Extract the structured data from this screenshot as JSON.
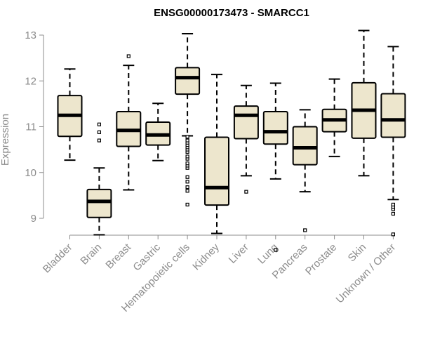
{
  "chart_data": {
    "type": "boxplot",
    "title": "ENSG00000173473 - SMARCC1",
    "xlabel": "",
    "ylabel": "Expression",
    "ylim": [
      8.2,
      13.2
    ],
    "yticks": [
      9,
      10,
      11,
      12,
      13
    ],
    "box_fill": "#ede6cd",
    "categories": [
      "Bladder",
      "Brain",
      "Breast",
      "Gastric",
      "Hematopoietic cells",
      "Kidney",
      "Liver",
      "Lung",
      "Pancreas",
      "Prostate",
      "Skin",
      "Unknown / Other"
    ],
    "tick_labels": [
      "Bladder",
      "Brain",
      "Breast",
      "Gastric",
      "Hematopoietic cells",
      "Kidney",
      "Liver",
      "Lung",
      "Pancreas",
      "Prostate",
      "Skin",
      "Unknown / Other"
    ],
    "boxes": [
      {
        "name": "Bladder",
        "whisker_low": 10.27,
        "q1": 10.79,
        "median": 11.25,
        "q3": 11.68,
        "whisker_high": 12.26,
        "outliers": []
      },
      {
        "name": "Brain",
        "whisker_low": 8.64,
        "q1": 9.02,
        "median": 9.37,
        "q3": 9.63,
        "whisker_high": 10.1,
        "outliers": [
          10.7,
          10.88,
          11.05
        ]
      },
      {
        "name": "Breast",
        "whisker_low": 9.62,
        "q1": 10.57,
        "median": 10.92,
        "q3": 11.33,
        "whisker_high": 12.34,
        "outliers": [
          12.54
        ]
      },
      {
        "name": "Gastric",
        "whisker_low": 10.26,
        "q1": 10.6,
        "median": 10.82,
        "q3": 11.1,
        "whisker_high": 11.51,
        "outliers": []
      },
      {
        "name": "Hematopoietic cells",
        "whisker_low": 10.8,
        "q1": 11.71,
        "median": 12.07,
        "q3": 12.29,
        "whisker_high": 13.03,
        "outliers": [
          9.3,
          9.6,
          9.68,
          9.8,
          9.9,
          10.1,
          10.15,
          10.2,
          10.3,
          10.35,
          10.45,
          10.5,
          10.55,
          10.6,
          10.65,
          10.7,
          10.78
        ]
      },
      {
        "name": "Kidney",
        "whisker_low": 8.67,
        "q1": 9.29,
        "median": 9.67,
        "q3": 10.77,
        "whisker_high": 12.14,
        "outliers": []
      },
      {
        "name": "Liver",
        "whisker_low": 9.93,
        "q1": 10.74,
        "median": 11.25,
        "q3": 11.45,
        "whisker_high": 11.9,
        "outliers": [
          9.58
        ]
      },
      {
        "name": "Lung",
        "whisker_low": 9.86,
        "q1": 10.62,
        "median": 10.89,
        "q3": 11.33,
        "whisker_high": 11.95,
        "outliers": [
          8.31
        ]
      },
      {
        "name": "Pancreas",
        "whisker_low": 9.58,
        "q1": 10.17,
        "median": 10.54,
        "q3": 11.0,
        "whisker_high": 11.37,
        "outliers": [
          8.74
        ]
      },
      {
        "name": "Prostate",
        "whisker_low": 10.35,
        "q1": 10.89,
        "median": 11.15,
        "q3": 11.38,
        "whisker_high": 12.04,
        "outliers": []
      },
      {
        "name": "Skin",
        "whisker_low": 9.93,
        "q1": 10.75,
        "median": 11.36,
        "q3": 11.96,
        "whisker_high": 13.1,
        "outliers": []
      },
      {
        "name": "Unknown / Other",
        "whisker_low": 9.41,
        "q1": 10.77,
        "median": 11.15,
        "q3": 11.72,
        "whisker_high": 12.75,
        "outliers": [
          8.65,
          9.1,
          9.2,
          9.25,
          9.3
        ]
      }
    ]
  }
}
